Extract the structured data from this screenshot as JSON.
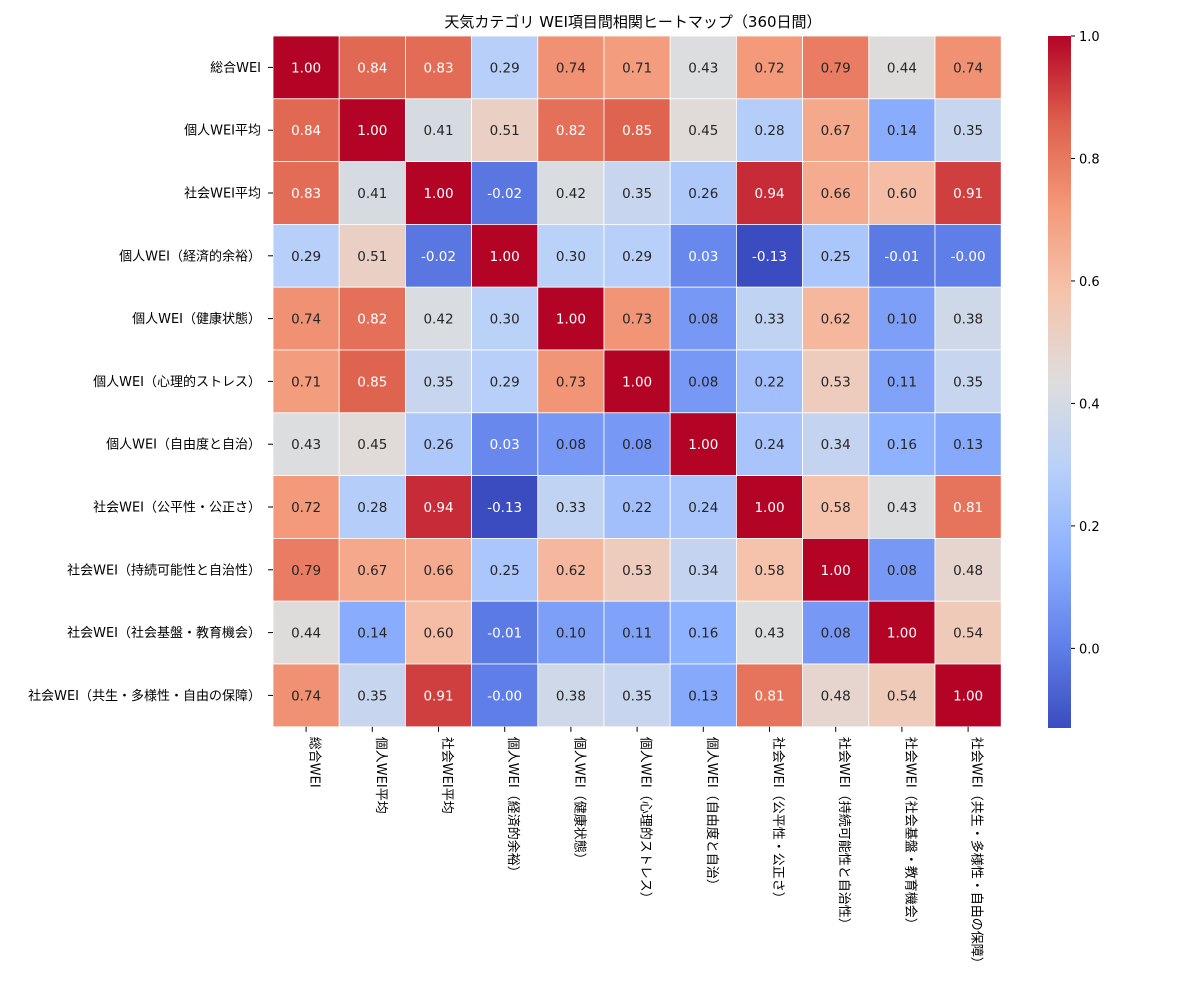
{
  "chart_data": {
    "type": "heatmap",
    "title": "天気カテゴリ WEI項目間相関ヒートマップ（360日間）",
    "labels": [
      "総合WEI",
      "個人WEI平均",
      "社会WEI平均",
      "個人WEI（経済的余裕）",
      "個人WEI（健康状態）",
      "個人WEI（心理的ストレス）",
      "個人WEI（自由度と自治）",
      "社会WEI（公平性・公正さ）",
      "社会WEI（持続可能性と自治性）",
      "社会WEI（社会基盤・教育機会）",
      "社会WEI（共生・多様性・自由の保障）"
    ],
    "values": [
      [
        1.0,
        0.84,
        0.83,
        0.29,
        0.74,
        0.71,
        0.43,
        0.72,
        0.79,
        0.44,
        0.74
      ],
      [
        0.84,
        1.0,
        0.41,
        0.51,
        0.82,
        0.85,
        0.45,
        0.28,
        0.67,
        0.14,
        0.35
      ],
      [
        0.83,
        0.41,
        1.0,
        -0.02,
        0.42,
        0.35,
        0.26,
        0.94,
        0.66,
        0.6,
        0.91
      ],
      [
        0.29,
        0.51,
        -0.02,
        1.0,
        0.3,
        0.29,
        0.03,
        -0.13,
        0.25,
        -0.01,
        -0.0
      ],
      [
        0.74,
        0.82,
        0.42,
        0.3,
        1.0,
        0.73,
        0.08,
        0.33,
        0.62,
        0.1,
        0.38
      ],
      [
        0.71,
        0.85,
        0.35,
        0.29,
        0.73,
        1.0,
        0.08,
        0.22,
        0.53,
        0.11,
        0.35
      ],
      [
        0.43,
        0.45,
        0.26,
        0.03,
        0.08,
        0.08,
        1.0,
        0.24,
        0.34,
        0.16,
        0.13
      ],
      [
        0.72,
        0.28,
        0.94,
        -0.13,
        0.33,
        0.22,
        0.24,
        1.0,
        0.58,
        0.43,
        0.81
      ],
      [
        0.79,
        0.67,
        0.66,
        0.25,
        0.62,
        0.53,
        0.34,
        0.58,
        1.0,
        0.08,
        0.48
      ],
      [
        0.44,
        0.14,
        0.6,
        -0.01,
        0.1,
        0.11,
        0.16,
        0.43,
        0.08,
        1.0,
        0.54
      ],
      [
        0.74,
        0.35,
        0.91,
        -0.0,
        0.38,
        0.35,
        0.13,
        0.81,
        0.48,
        0.54,
        1.0
      ]
    ],
    "value_format": "2 decimals",
    "colormap": "coolwarm",
    "vmin": -0.13,
    "vmax": 1.0,
    "colorbar_ticks": [
      "0.0",
      "0.2",
      "0.4",
      "0.6",
      "0.8",
      "1.0"
    ],
    "colorbar_tick_values": [
      0.0,
      0.2,
      0.4,
      0.6,
      0.8,
      1.0
    ],
    "colorbar_placement": "right",
    "grid_lines": "white"
  }
}
